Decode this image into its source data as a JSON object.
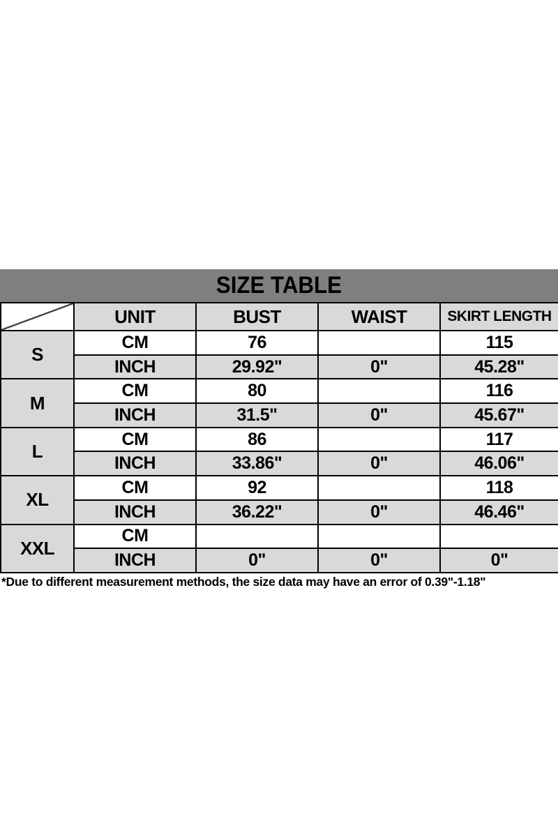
{
  "title": "SIZE TABLE",
  "footnote": "*Due to different measurement methods, the size data may have an error of 0.39\"-1.18\"",
  "colors": {
    "title_bar": "#7f7f7f",
    "shaded_row": "#d9d9d9",
    "border": "#000000",
    "text": "#000000",
    "background": "#ffffff"
  },
  "table": {
    "corner": "",
    "columns": [
      "UNIT",
      "BUST",
      "WAIST",
      "SKIRT LENGTH"
    ],
    "unit_labels": {
      "cm": "CM",
      "inch": "INCH"
    },
    "rows": [
      {
        "size": "S",
        "cm": [
          "76",
          "",
          "115"
        ],
        "inch": [
          "29.92\"",
          "0\"",
          "45.28\""
        ]
      },
      {
        "size": "M",
        "cm": [
          "80",
          "",
          "116"
        ],
        "inch": [
          "31.5\"",
          "0\"",
          "45.67\""
        ]
      },
      {
        "size": "L",
        "cm": [
          "86",
          "",
          "117"
        ],
        "inch": [
          "33.86\"",
          "0\"",
          "46.06\""
        ]
      },
      {
        "size": "XL",
        "cm": [
          "92",
          "",
          "118"
        ],
        "inch": [
          "36.22\"",
          "0\"",
          "46.46\""
        ]
      },
      {
        "size": "XXL",
        "cm": [
          "",
          "",
          ""
        ],
        "inch": [
          "0\"",
          "0\"",
          "0\""
        ]
      }
    ]
  },
  "chart_data": {
    "type": "table",
    "title": "SIZE TABLE",
    "column_headers": [
      "",
      "UNIT",
      "BUST",
      "WAIST",
      "SKIRT LENGTH"
    ],
    "rows": [
      [
        "S",
        "CM",
        "76",
        "",
        "115"
      ],
      [
        "S",
        "INCH",
        "29.92\"",
        "0\"",
        "45.28\""
      ],
      [
        "M",
        "CM",
        "80",
        "",
        "116"
      ],
      [
        "M",
        "INCH",
        "31.5\"",
        "0\"",
        "45.67\""
      ],
      [
        "L",
        "CM",
        "86",
        "",
        "117"
      ],
      [
        "L",
        "INCH",
        "33.86\"",
        "0\"",
        "46.06\""
      ],
      [
        "XL",
        "CM",
        "92",
        "",
        "118"
      ],
      [
        "XL",
        "INCH",
        "36.22\"",
        "0\"",
        "46.46\""
      ],
      [
        "XXL",
        "CM",
        "",
        "",
        ""
      ],
      [
        "XXL",
        "INCH",
        "0\"",
        "0\"",
        "0\""
      ]
    ],
    "footnote": "*Due to different measurement methods, the size data may have an error of 0.39\"-1.18\""
  }
}
